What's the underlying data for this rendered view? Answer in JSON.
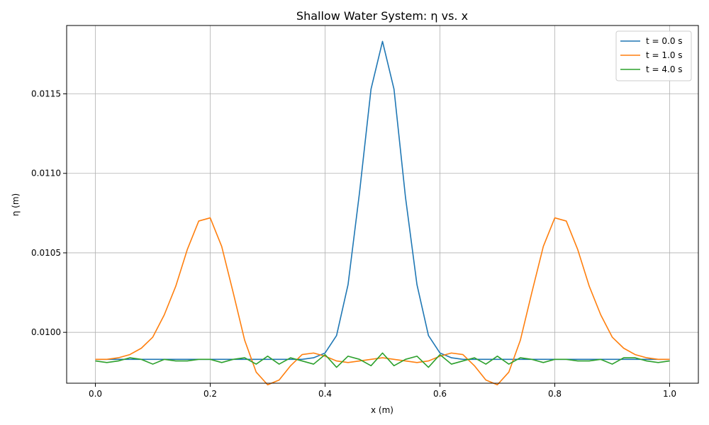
{
  "chart_data": {
    "type": "line",
    "title": "Shallow Water System: η vs. x",
    "xlabel": "x (m)",
    "ylabel": "η (m)",
    "xlim": [
      -0.05,
      1.05
    ],
    "ylim": [
      0.00968,
      0.01193
    ],
    "xticks": [
      0.0,
      0.2,
      0.4,
      0.6,
      0.8,
      1.0
    ],
    "xtick_labels": [
      "0.0",
      "0.2",
      "0.4",
      "0.6",
      "0.8",
      "1.0"
    ],
    "yticks": [
      0.01,
      0.0105,
      0.011,
      0.0115
    ],
    "ytick_labels": [
      "0.0100",
      "0.0105",
      "0.0110",
      "0.0115"
    ],
    "grid": true,
    "legend_position": "top-right",
    "x": [
      0.0,
      0.02,
      0.04,
      0.06,
      0.08,
      0.1,
      0.12,
      0.14,
      0.16,
      0.18,
      0.2,
      0.22,
      0.24,
      0.26,
      0.28,
      0.3,
      0.32,
      0.34,
      0.36,
      0.38,
      0.4,
      0.42,
      0.44,
      0.46,
      0.48,
      0.5,
      0.52,
      0.54,
      0.56,
      0.58,
      0.6,
      0.62,
      0.64,
      0.66,
      0.68,
      0.7,
      0.72,
      0.74,
      0.76,
      0.78,
      0.8,
      0.82,
      0.84,
      0.86,
      0.88,
      0.9,
      0.92,
      0.94,
      0.96,
      0.98,
      1.0
    ],
    "series": [
      {
        "name": "t = 0.0 s",
        "color": "#1f77b4",
        "values": [
          0.00983,
          0.00983,
          0.00983,
          0.00983,
          0.00983,
          0.00983,
          0.00983,
          0.00983,
          0.00983,
          0.00983,
          0.00983,
          0.00983,
          0.00983,
          0.00983,
          0.00983,
          0.00983,
          0.00983,
          0.00983,
          0.00983,
          0.00984,
          0.00987,
          0.00998,
          0.0103,
          0.01088,
          0.01153,
          0.01183,
          0.01153,
          0.01085,
          0.0103,
          0.00998,
          0.00987,
          0.00984,
          0.00983,
          0.00983,
          0.00983,
          0.00983,
          0.00983,
          0.00983,
          0.00983,
          0.00983,
          0.00983,
          0.00983,
          0.00983,
          0.00983,
          0.00983,
          0.00983,
          0.00983,
          0.00983,
          0.00983,
          0.00983,
          0.00983
        ]
      },
      {
        "name": "t = 1.0 s",
        "color": "#ff7f0e",
        "values": [
          0.00983,
          0.00983,
          0.00984,
          0.00986,
          0.0099,
          0.00997,
          0.01011,
          0.01029,
          0.01052,
          0.0107,
          0.01072,
          0.01054,
          0.01025,
          0.00995,
          0.00975,
          0.00967,
          0.0097,
          0.00979,
          0.00986,
          0.00987,
          0.00985,
          0.00982,
          0.00981,
          0.00982,
          0.00983,
          0.00984,
          0.00983,
          0.00982,
          0.00981,
          0.00982,
          0.00985,
          0.00987,
          0.00986,
          0.00979,
          0.0097,
          0.00967,
          0.00975,
          0.00995,
          0.01025,
          0.01054,
          0.01072,
          0.0107,
          0.01052,
          0.01029,
          0.01011,
          0.00997,
          0.0099,
          0.00986,
          0.00984,
          0.00983,
          0.00983
        ]
      },
      {
        "name": "t = 4.0 s",
        "color": "#2ca02c",
        "values": [
          0.00982,
          0.00981,
          0.00982,
          0.00984,
          0.00983,
          0.0098,
          0.00983,
          0.00982,
          0.00982,
          0.00983,
          0.00983,
          0.00981,
          0.00983,
          0.00984,
          0.0098,
          0.00985,
          0.0098,
          0.00984,
          0.00982,
          0.0098,
          0.00986,
          0.00978,
          0.00985,
          0.00983,
          0.00979,
          0.00987,
          0.00979,
          0.00983,
          0.00985,
          0.00978,
          0.00986,
          0.0098,
          0.00982,
          0.00984,
          0.0098,
          0.00985,
          0.0098,
          0.00984,
          0.00983,
          0.00981,
          0.00983,
          0.00983,
          0.00982,
          0.00982,
          0.00983,
          0.0098,
          0.00984,
          0.00984,
          0.00982,
          0.00981,
          0.00982
        ]
      }
    ]
  }
}
